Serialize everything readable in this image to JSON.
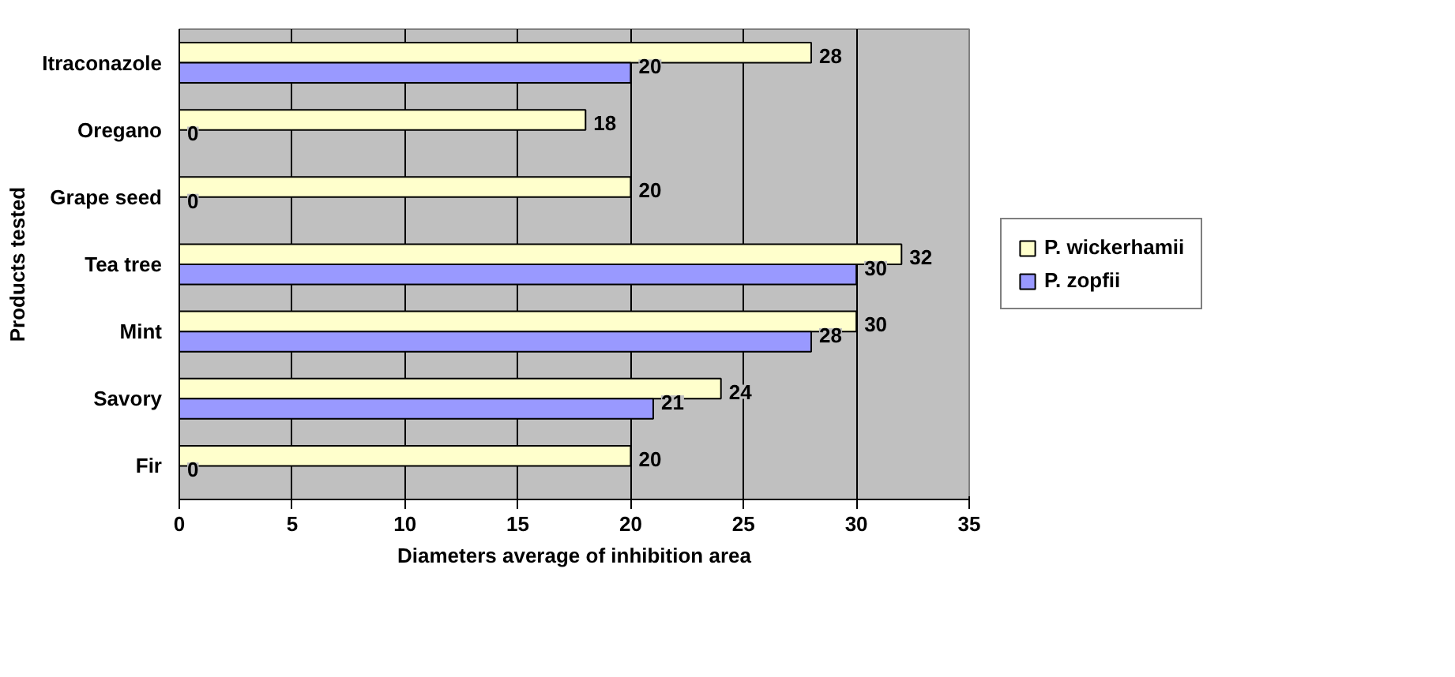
{
  "chart_data": {
    "type": "bar",
    "orientation": "horizontal",
    "xlabel": "Diameters average of inhibition area",
    "ylabel": "Products tested",
    "categories": [
      "Itraconazole",
      "Oregano",
      "Grape seed",
      "Tea tree",
      "Mint",
      "Savory",
      "Fir"
    ],
    "series": [
      {
        "name": "P. wickerhamii",
        "color": "#ffffcc",
        "values": [
          28,
          18,
          20,
          32,
          30,
          24,
          20
        ]
      },
      {
        "name": "P. zopfii",
        "color": "#9999ff",
        "values": [
          20,
          0,
          0,
          30,
          28,
          21,
          0
        ]
      }
    ],
    "xlim": [
      0,
      35
    ],
    "xticks": [
      0,
      5,
      10,
      15,
      20,
      25,
      30,
      35
    ],
    "grid": "x",
    "legend": "right",
    "data_labels": true
  }
}
